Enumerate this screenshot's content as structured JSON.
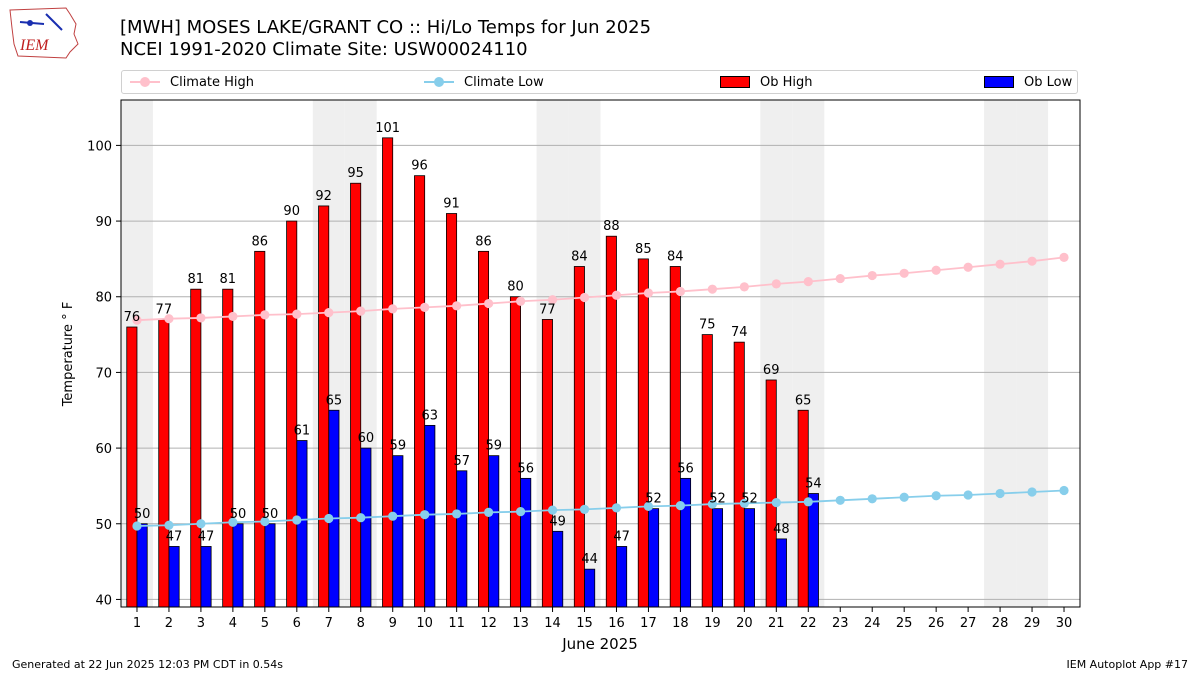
{
  "header": {
    "title_line1": "[MWH] MOSES LAKE/GRANT CO :: Hi/Lo Temps for Jun 2025",
    "title_line2": "NCEI 1991-2020 Climate Site: USW00024110",
    "logo_text": "IEM"
  },
  "legend": {
    "climate_high": "Climate High",
    "climate_low": "Climate Low",
    "ob_high": "Ob High",
    "ob_low": "Ob Low"
  },
  "colors": {
    "climate_high": "#ffc0cb",
    "climate_low": "#87ceeb",
    "ob_high": "#ff0000",
    "ob_low": "#0000ff",
    "weekend_shade": "#efefef",
    "grid": "#b0b0b0"
  },
  "chart_data": {
    "type": "bar",
    "xlabel": "June 2025",
    "ylabel": "Temperature ° F",
    "ylim": [
      39,
      106
    ],
    "yticks": [
      40,
      50,
      60,
      70,
      80,
      90,
      100
    ],
    "grid": true,
    "legend_position": "top",
    "x": [
      1,
      2,
      3,
      4,
      5,
      6,
      7,
      8,
      9,
      10,
      11,
      12,
      13,
      14,
      15,
      16,
      17,
      18,
      19,
      20,
      21,
      22,
      23,
      24,
      25,
      26,
      27,
      28,
      29,
      30
    ],
    "weekend_days": [
      1,
      7,
      8,
      14,
      15,
      21,
      22,
      28,
      29
    ],
    "series": [
      {
        "name": "Ob High",
        "kind": "bar",
        "values": [
          76,
          77,
          81,
          81,
          86,
          90,
          92,
          95,
          101,
          96,
          91,
          86,
          80,
          77,
          84,
          88,
          85,
          84,
          75,
          74,
          69,
          65,
          null,
          null,
          null,
          null,
          null,
          null,
          null,
          null
        ]
      },
      {
        "name": "Ob Low",
        "kind": "bar",
        "values": [
          50,
          47,
          47,
          50,
          50,
          61,
          65,
          60,
          59,
          63,
          57,
          59,
          56,
          49,
          44,
          47,
          52,
          56,
          52,
          52,
          48,
          54,
          null,
          null,
          null,
          null,
          null,
          null,
          null,
          null
        ]
      },
      {
        "name": "Climate High",
        "kind": "line",
        "values": [
          76.9,
          77.1,
          77.2,
          77.4,
          77.6,
          77.7,
          77.9,
          78.1,
          78.4,
          78.6,
          78.8,
          79.1,
          79.4,
          79.6,
          79.9,
          80.2,
          80.5,
          80.7,
          81.0,
          81.3,
          81.7,
          82.0,
          82.4,
          82.8,
          83.1,
          83.5,
          83.9,
          84.3,
          84.7,
          85.2
        ]
      },
      {
        "name": "Climate Low",
        "kind": "line",
        "values": [
          49.7,
          49.8,
          50.0,
          50.2,
          50.3,
          50.5,
          50.7,
          50.8,
          51.0,
          51.2,
          51.3,
          51.5,
          51.6,
          51.8,
          51.9,
          52.1,
          52.3,
          52.4,
          52.6,
          52.7,
          52.8,
          52.9,
          53.1,
          53.3,
          53.5,
          53.7,
          53.8,
          54.0,
          54.2,
          54.4
        ]
      }
    ]
  },
  "footer": {
    "left": "Generated at 22 Jun 2025 12:03 PM CDT in 0.54s",
    "right": "IEM Autoplot App #17"
  }
}
